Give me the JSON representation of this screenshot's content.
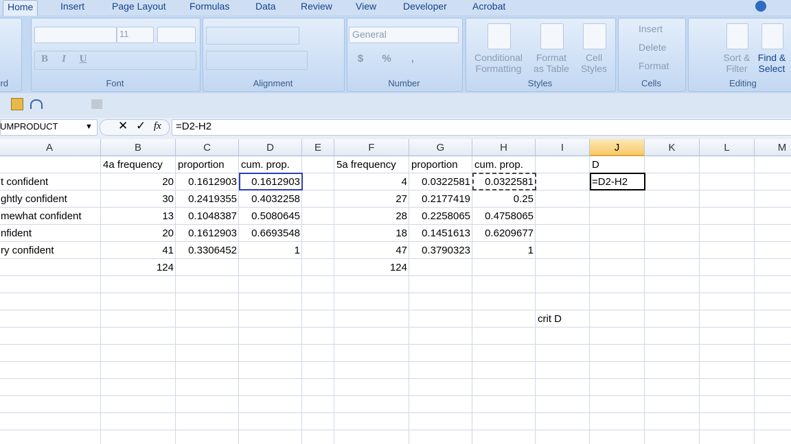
{
  "ribbon": {
    "tabs": [
      "Home",
      "Insert",
      "Page Layout",
      "Formulas",
      "Data",
      "Review",
      "View",
      "Developer",
      "Acrobat"
    ],
    "groups": [
      "rd",
      "Font",
      "Alignment",
      "Number",
      "Styles",
      "Cells",
      "Editing"
    ],
    "font_size": "11",
    "number_format": "General",
    "font_buttons": [
      "B",
      "I",
      "U"
    ],
    "number_buttons": [
      "$",
      "%",
      ","
    ],
    "styles_buttons": [
      [
        "Conditional",
        "Formatting"
      ],
      [
        "Format",
        "as Table"
      ],
      [
        "Cell",
        "Styles"
      ]
    ],
    "cells_buttons": [
      "Insert",
      "Delete",
      "Format"
    ],
    "editing_buttons": [
      [
        "Sort &",
        "Filter"
      ],
      [
        "Find &",
        "Select"
      ]
    ]
  },
  "formula_bar": {
    "name_box": "UMPRODUCT",
    "fx": "fx",
    "formula": "=D2-H2"
  },
  "sheet": {
    "columns": [
      "A",
      "B",
      "C",
      "D",
      "E",
      "F",
      "G",
      "H",
      "I",
      "J",
      "K",
      "L",
      "M"
    ],
    "rows": [
      [
        null,
        "4a frequency",
        "proportion",
        "cum. prop.",
        null,
        "5a frequency",
        "proportion",
        "cum. prop.",
        null,
        "D",
        null,
        null,
        null
      ],
      [
        "t confident",
        20,
        0.1612903,
        0.1612903,
        null,
        4,
        0.0322581,
        0.0322581,
        null,
        "=D2-H2",
        null,
        null,
        null
      ],
      [
        "ghtly confident",
        30,
        0.2419355,
        0.4032258,
        null,
        27,
        0.2177419,
        0.25,
        null,
        null,
        null,
        null,
        null
      ],
      [
        "mewhat confident",
        13,
        0.1048387,
        0.5080645,
        null,
        28,
        0.2258065,
        0.4758065,
        null,
        null,
        null,
        null,
        null
      ],
      [
        "nfident",
        20,
        0.1612903,
        0.6693548,
        null,
        18,
        0.1451613,
        0.6209677,
        null,
        null,
        null,
        null,
        null
      ],
      [
        "ry confident",
        41,
        0.3306452,
        1,
        null,
        47,
        0.3790323,
        1,
        null,
        null,
        null,
        null,
        null
      ],
      [
        null,
        124,
        null,
        null,
        null,
        124,
        null,
        null,
        null,
        null,
        null,
        null,
        null
      ],
      [
        null,
        null,
        null,
        null,
        null,
        null,
        null,
        null,
        null,
        null,
        null,
        null,
        null
      ],
      [
        null,
        null,
        null,
        null,
        null,
        null,
        null,
        null,
        null,
        null,
        null,
        null,
        null
      ],
      [
        null,
        null,
        null,
        null,
        null,
        null,
        null,
        null,
        "crit D",
        null,
        null,
        null,
        null
      ]
    ]
  }
}
